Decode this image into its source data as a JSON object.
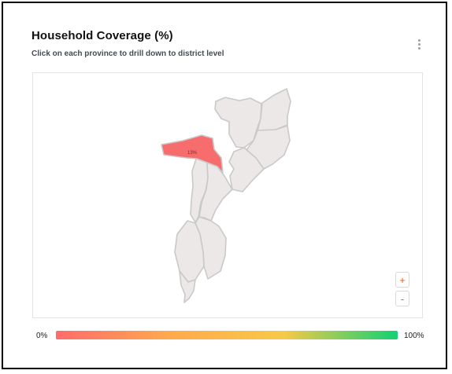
{
  "card": {
    "title": "Household Coverage (%)",
    "subtitle": "Click on each province to drill down to district level",
    "menu_icon": "kebab-menu-icon"
  },
  "map": {
    "highlighted_province": {
      "label": "13%",
      "value_percent": 13,
      "fill": "#f76c6c"
    },
    "default_fill": "#ece8e7",
    "border_color": "#c9c9c9"
  },
  "zoom": {
    "in_label": "+",
    "out_label": "-"
  },
  "legend": {
    "min_label": "0%",
    "max_label": "100%",
    "colors": [
      "#ff6b6b",
      "#ffa94d",
      "#f7c948",
      "#12d173"
    ]
  }
}
